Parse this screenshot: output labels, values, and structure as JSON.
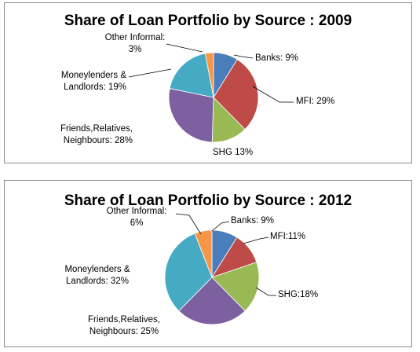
{
  "chart_data": [
    {
      "type": "pie",
      "title": "Share of Loan Portfolio by Source : 2009",
      "categories": [
        "Banks",
        "MFI",
        "SHG",
        "Friends,Relatives, Neighbours",
        "Moneylenders & Landlords",
        "Other Informal"
      ],
      "values": [
        9,
        29,
        13,
        28,
        19,
        3
      ],
      "colors": [
        "#4a7ebb",
        "#be4b48",
        "#98b954",
        "#7d60a0",
        "#46aac4",
        "#f79646"
      ],
      "labels": [
        {
          "lines": [
            "Banks: 9%"
          ]
        },
        {
          "lines": [
            "MFI: 29%"
          ]
        },
        {
          "lines": [
            "SHG  13%"
          ]
        },
        {
          "lines": [
            "Friends,Relatives,",
            "Neighbours: 28%"
          ]
        },
        {
          "lines": [
            "Moneylenders &",
            "Landlords: 19%"
          ]
        },
        {
          "lines": [
            "Other Informal:",
            "3%"
          ]
        }
      ]
    },
    {
      "type": "pie",
      "title": "Share of Loan Portfolio by Source : 2012",
      "categories": [
        "Banks",
        "MFI",
        "SHG",
        "Friends,Relatives, Neighbours",
        "Moneylenders & Landlords",
        "Other Informal"
      ],
      "values": [
        9,
        11,
        18,
        25,
        32,
        6
      ],
      "colors": [
        "#4a7ebb",
        "#be4b48",
        "#98b954",
        "#7d60a0",
        "#46aac4",
        "#f79646"
      ],
      "labels": [
        {
          "lines": [
            "Banks: 9%"
          ]
        },
        {
          "lines": [
            "MFI:11%"
          ]
        },
        {
          "lines": [
            "SHG:18%"
          ]
        },
        {
          "lines": [
            "Friends,Relatives,",
            "Neighbours: 25%"
          ]
        },
        {
          "lines": [
            "Moneylenders &",
            "Landlords: 32%"
          ]
        },
        {
          "lines": [
            "Other Informal:",
            "6%"
          ]
        }
      ]
    }
  ]
}
